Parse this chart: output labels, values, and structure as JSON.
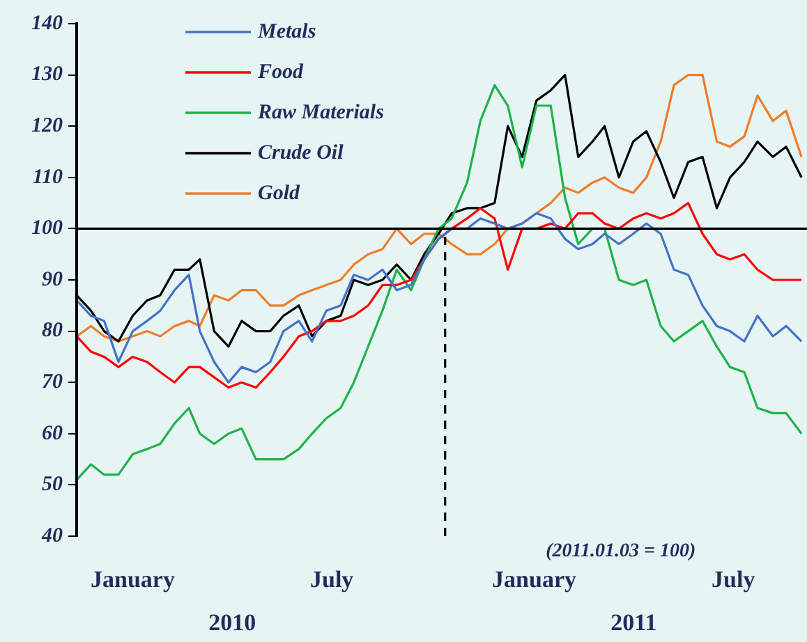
{
  "chart_data": {
    "type": "line",
    "x": [
      "2009-11-11",
      "2009-11-24",
      "2009-12-06",
      "2009-12-19",
      "2010-01-01",
      "2010-01-14",
      "2010-01-26",
      "2010-02-08",
      "2010-02-21",
      "2010-03-03",
      "2010-03-16",
      "2010-03-29",
      "2010-04-10",
      "2010-04-23",
      "2010-05-06",
      "2010-05-18",
      "2010-06-01",
      "2010-06-13",
      "2010-06-26",
      "2010-07-09",
      "2010-07-21",
      "2010-08-03",
      "2010-08-16",
      "2010-08-29",
      "2010-09-11",
      "2010-09-23",
      "2010-10-06",
      "2010-10-18",
      "2010-11-01",
      "2010-11-13",
      "2010-11-26",
      "2010-12-08",
      "2010-12-21",
      "2011-01-03",
      "2011-01-16",
      "2011-01-29",
      "2011-02-10",
      "2011-02-23",
      "2011-03-06",
      "2011-03-19",
      "2011-04-01",
      "2011-04-13",
      "2011-04-26",
      "2011-05-08",
      "2011-05-21",
      "2011-06-03",
      "2011-06-16",
      "2011-06-28",
      "2011-07-11",
      "2011-07-23",
      "2011-08-06",
      "2011-08-18",
      "2011-09-01"
    ],
    "series": [
      {
        "name": "Metals",
        "color": "#4472c4",
        "values": [
          86,
          83,
          82,
          74,
          80,
          82,
          84,
          88,
          91,
          80,
          74,
          70,
          73,
          72,
          74,
          80,
          82,
          78,
          84,
          85,
          91,
          90,
          92,
          88,
          89,
          94,
          98,
          100,
          100,
          102,
          101,
          100,
          101,
          103,
          102,
          98,
          96,
          97,
          99,
          97,
          99,
          101,
          99,
          92,
          91,
          85,
          81,
          80,
          78,
          83,
          79,
          81,
          78
        ]
      },
      {
        "name": "Food",
        "color": "#ff0000",
        "values": [
          79,
          76,
          75,
          73,
          75,
          74,
          72,
          70,
          73,
          73,
          71,
          69,
          70,
          69,
          72,
          75,
          79,
          80,
          82,
          82,
          83,
          85,
          89,
          89,
          90,
          94,
          98,
          100,
          102,
          104,
          102,
          92,
          100,
          100,
          101,
          100,
          103,
          103,
          101,
          100,
          102,
          103,
          102,
          103,
          105,
          99,
          95,
          94,
          95,
          92,
          90,
          90,
          90
        ]
      },
      {
        "name": "Raw Materials",
        "color": "#1fb24a",
        "values": [
          51,
          54,
          52,
          52,
          56,
          57,
          58,
          62,
          65,
          60,
          58,
          60,
          61,
          55,
          55,
          55,
          57,
          60,
          63,
          65,
          70,
          77,
          84,
          92,
          88,
          94,
          100,
          102,
          109,
          121,
          128,
          124,
          112,
          124,
          124,
          106,
          97,
          100,
          100,
          90,
          89,
          90,
          81,
          78,
          80,
          82,
          77,
          73,
          72,
          65,
          64,
          64,
          60
        ]
      },
      {
        "name": "Crude Oil",
        "color": "#000000",
        "values": [
          87,
          84,
          80,
          78,
          83,
          86,
          87,
          92,
          92,
          94,
          80,
          77,
          82,
          80,
          80,
          83,
          85,
          79,
          82,
          83,
          90,
          89,
          90,
          93,
          90,
          95,
          99,
          103,
          104,
          104,
          105,
          120,
          114,
          125,
          127,
          130,
          114,
          117,
          120,
          110,
          117,
          119,
          113,
          106,
          113,
          114,
          104,
          110,
          113,
          117,
          114,
          116,
          110
        ]
      },
      {
        "name": "Gold",
        "color": "#f07c28",
        "values": [
          79,
          81,
          79,
          78,
          79,
          80,
          79,
          81,
          82,
          81,
          87,
          86,
          88,
          88,
          85,
          85,
          87,
          88,
          89,
          90,
          93,
          95,
          96,
          100,
          97,
          99,
          99,
          97,
          95,
          95,
          97,
          100,
          101,
          103,
          105,
          108,
          107,
          109,
          110,
          108,
          107,
          110,
          117,
          128,
          130,
          130,
          117,
          116,
          118,
          126,
          121,
          123,
          114
        ]
      }
    ],
    "xlim": [
      "2009-11-11",
      "2011-09-06"
    ],
    "xticks": [
      {
        "value": "2010-01-01",
        "label": "January"
      },
      {
        "value": "2010-07-01",
        "label": "July"
      },
      {
        "value": "2011-01-01",
        "label": "January"
      },
      {
        "value": "2011-07-01",
        "label": "July"
      }
    ],
    "ylim": [
      40,
      140
    ],
    "yticks": [
      40,
      50,
      60,
      70,
      80,
      90,
      100,
      110,
      120,
      130,
      140
    ],
    "ref_lines": [
      {
        "axis": "y",
        "value": 100,
        "color": "#000000",
        "line_style": "solid"
      },
      {
        "axis": "x",
        "value": "2010-10-12",
        "color": "#000000",
        "line_style": "dashed"
      }
    ],
    "annotations": [
      "(2011.01.03 = 100)",
      "2010",
      "2011"
    ],
    "legend": "top",
    "grid": false,
    "marker": "none",
    "line_style": "solid"
  }
}
